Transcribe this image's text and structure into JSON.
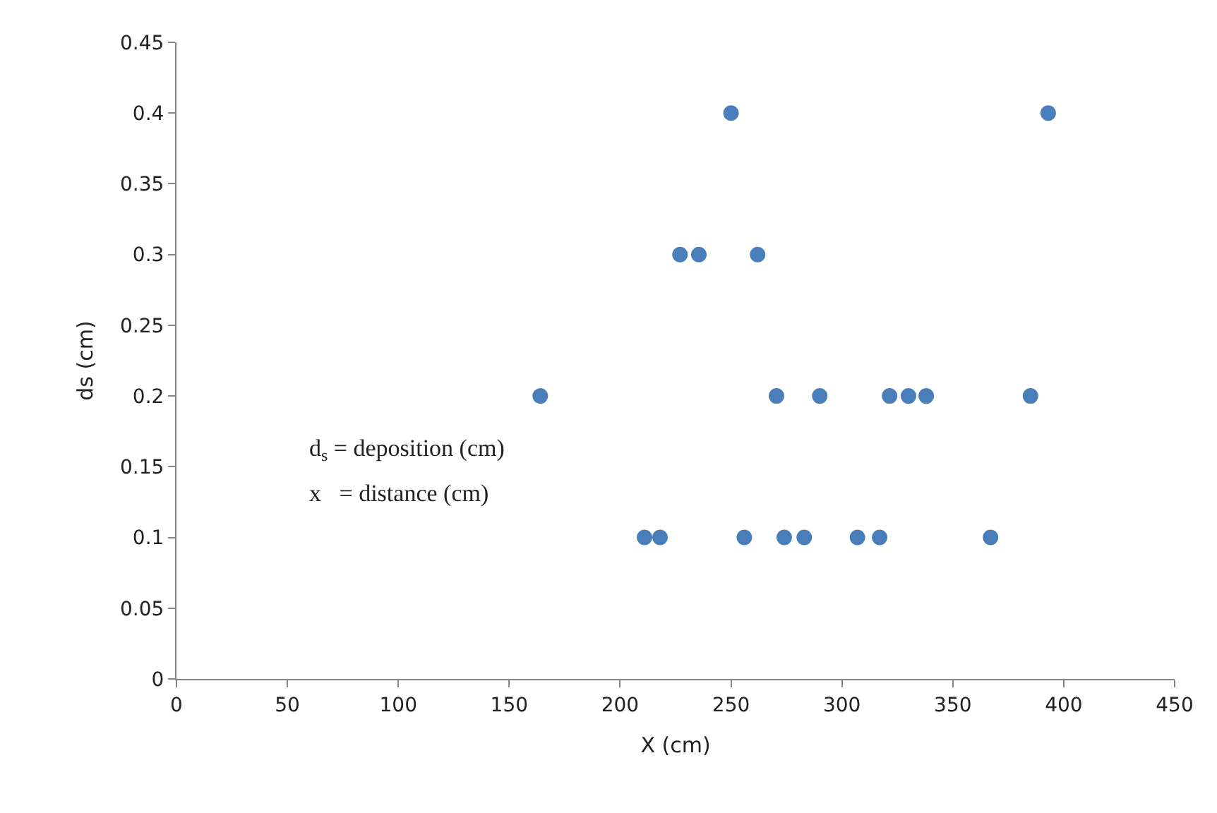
{
  "chart_data": {
    "type": "scatter",
    "xlabel": "X (cm)",
    "ylabel": "ds (cm)",
    "x": [
      250,
      393,
      227,
      235.5,
      262,
      164,
      270.5,
      290,
      321.5,
      330,
      338,
      385,
      211,
      218,
      256,
      274,
      283,
      307,
      317,
      367
    ],
    "series": [
      {
        "color": "#4a7ebb",
        "values": [
          0.4,
          0.4,
          0.3,
          0.3,
          0.3,
          0.2,
          0.2,
          0.2,
          0.2,
          0.2,
          0.2,
          0.2,
          0.1,
          0.1,
          0.1,
          0.1,
          0.1,
          0.1,
          0.1,
          0.1
        ]
      }
    ],
    "xlim": [
      0,
      450
    ],
    "xticks": [
      0,
      50,
      100,
      150,
      200,
      250,
      300,
      350,
      400,
      450
    ],
    "ylim": [
      0,
      0.45
    ],
    "yticks": [
      0,
      0.05,
      0.1,
      0.15,
      0.2,
      0.25,
      0.3,
      0.35,
      0.4,
      0.45
    ],
    "annotations": [
      "d$_{s}$ = deposition (cm)",
      "x   = distance (cm)"
    ],
    "relative": false
  }
}
